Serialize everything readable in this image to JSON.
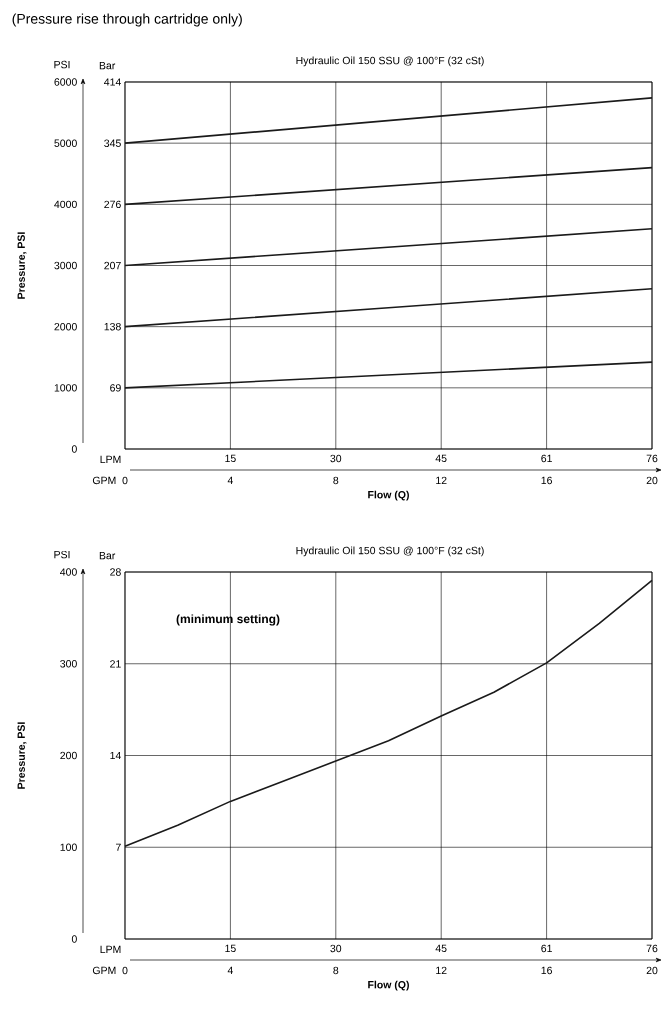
{
  "chart_data": [
    {
      "type": "line",
      "title": "(Pressure rise through cartridge only)",
      "subtitle": "Hydraulic Oil 150 SSU @ 100°F (32 cSt)",
      "xlabel": "Flow (Q)",
      "ylabel": "Pressure, PSI",
      "y2label": "Bar",
      "x2label": "LPM",
      "annotations": [
        "PSI",
        "GPM"
      ],
      "x": [
        0,
        10,
        20
      ],
      "series": [
        {
          "color": "#1a1a1a",
          "values": [
            1000,
            1210,
            1420
          ]
        },
        {
          "color": "#1a1a1a",
          "values": [
            2000,
            2310,
            2620
          ]
        },
        {
          "color": "#1a1a1a",
          "values": [
            3000,
            3300,
            3600
          ]
        },
        {
          "color": "#1a1a1a",
          "values": [
            4000,
            4300,
            4600
          ]
        },
        {
          "color": "#1a1a1a",
          "values": [
            5000,
            5370,
            5740
          ]
        }
      ],
      "xlim": [
        0,
        20
      ],
      "xticks": [
        0,
        4,
        8,
        12,
        16,
        20
      ],
      "x2lim": [
        0,
        75.71
      ],
      "x2ticks": [
        {
          "value": 15.14,
          "label": "15"
        },
        {
          "value": 30.28,
          "label": "30"
        },
        {
          "value": 45.42,
          "label": "45"
        },
        {
          "value": 60.57,
          "label": "61"
        },
        {
          "value": 75.71,
          "label": "76"
        }
      ],
      "ylim": [
        0,
        6000
      ],
      "yticks": [
        0,
        1000,
        2000,
        3000,
        4000,
        5000,
        6000
      ],
      "y2lim": [
        0,
        413.7
      ],
      "y2ticks": [
        {
          "value": 68.95,
          "label": "69"
        },
        {
          "value": 137.9,
          "label": "138"
        },
        {
          "value": 206.8,
          "label": "207"
        },
        {
          "value": 275.8,
          "label": "276"
        },
        {
          "value": 344.7,
          "label": "345"
        },
        {
          "value": 413.7,
          "label": "414"
        }
      ],
      "grid": true,
      "marker": "none",
      "line_style": "solid"
    },
    {
      "type": "line",
      "subtitle": "Hydraulic Oil 150 SSU @ 100°F (32 cSt)",
      "xlabel": "Flow (Q)",
      "ylabel": "Pressure, PSI",
      "y2label": "Bar",
      "x2label": "LPM",
      "annotations": [
        "PSI",
        "GPM",
        "(minimum setting)"
      ],
      "x": [
        0,
        2,
        4,
        6,
        8,
        10,
        12,
        14,
        16,
        18,
        20
      ],
      "series": [
        {
          "color": "#1a1a1a",
          "values": [
            101,
            124,
            150,
            172,
            194,
            216,
            243,
            269,
            301,
            344,
            391
          ]
        }
      ],
      "xlim": [
        0,
        20
      ],
      "xticks": [
        0,
        4,
        8,
        12,
        16,
        20
      ],
      "x2lim": [
        0,
        75.71
      ],
      "x2ticks": [
        {
          "value": 15.14,
          "label": "15"
        },
        {
          "value": 30.28,
          "label": "30"
        },
        {
          "value": 45.42,
          "label": "45"
        },
        {
          "value": 60.57,
          "label": "61"
        },
        {
          "value": 75.71,
          "label": "76"
        }
      ],
      "ylim": [
        0,
        400
      ],
      "yticks": [
        0,
        100,
        200,
        300,
        400
      ],
      "y2lim": [
        0,
        27.58
      ],
      "y2ticks": [
        {
          "value": 6.895,
          "label": "7"
        },
        {
          "value": 13.79,
          "label": "14"
        },
        {
          "value": 20.68,
          "label": "21"
        },
        {
          "value": 27.58,
          "label": "28"
        }
      ],
      "grid": true,
      "marker": "none",
      "line_style": "solid"
    }
  ]
}
